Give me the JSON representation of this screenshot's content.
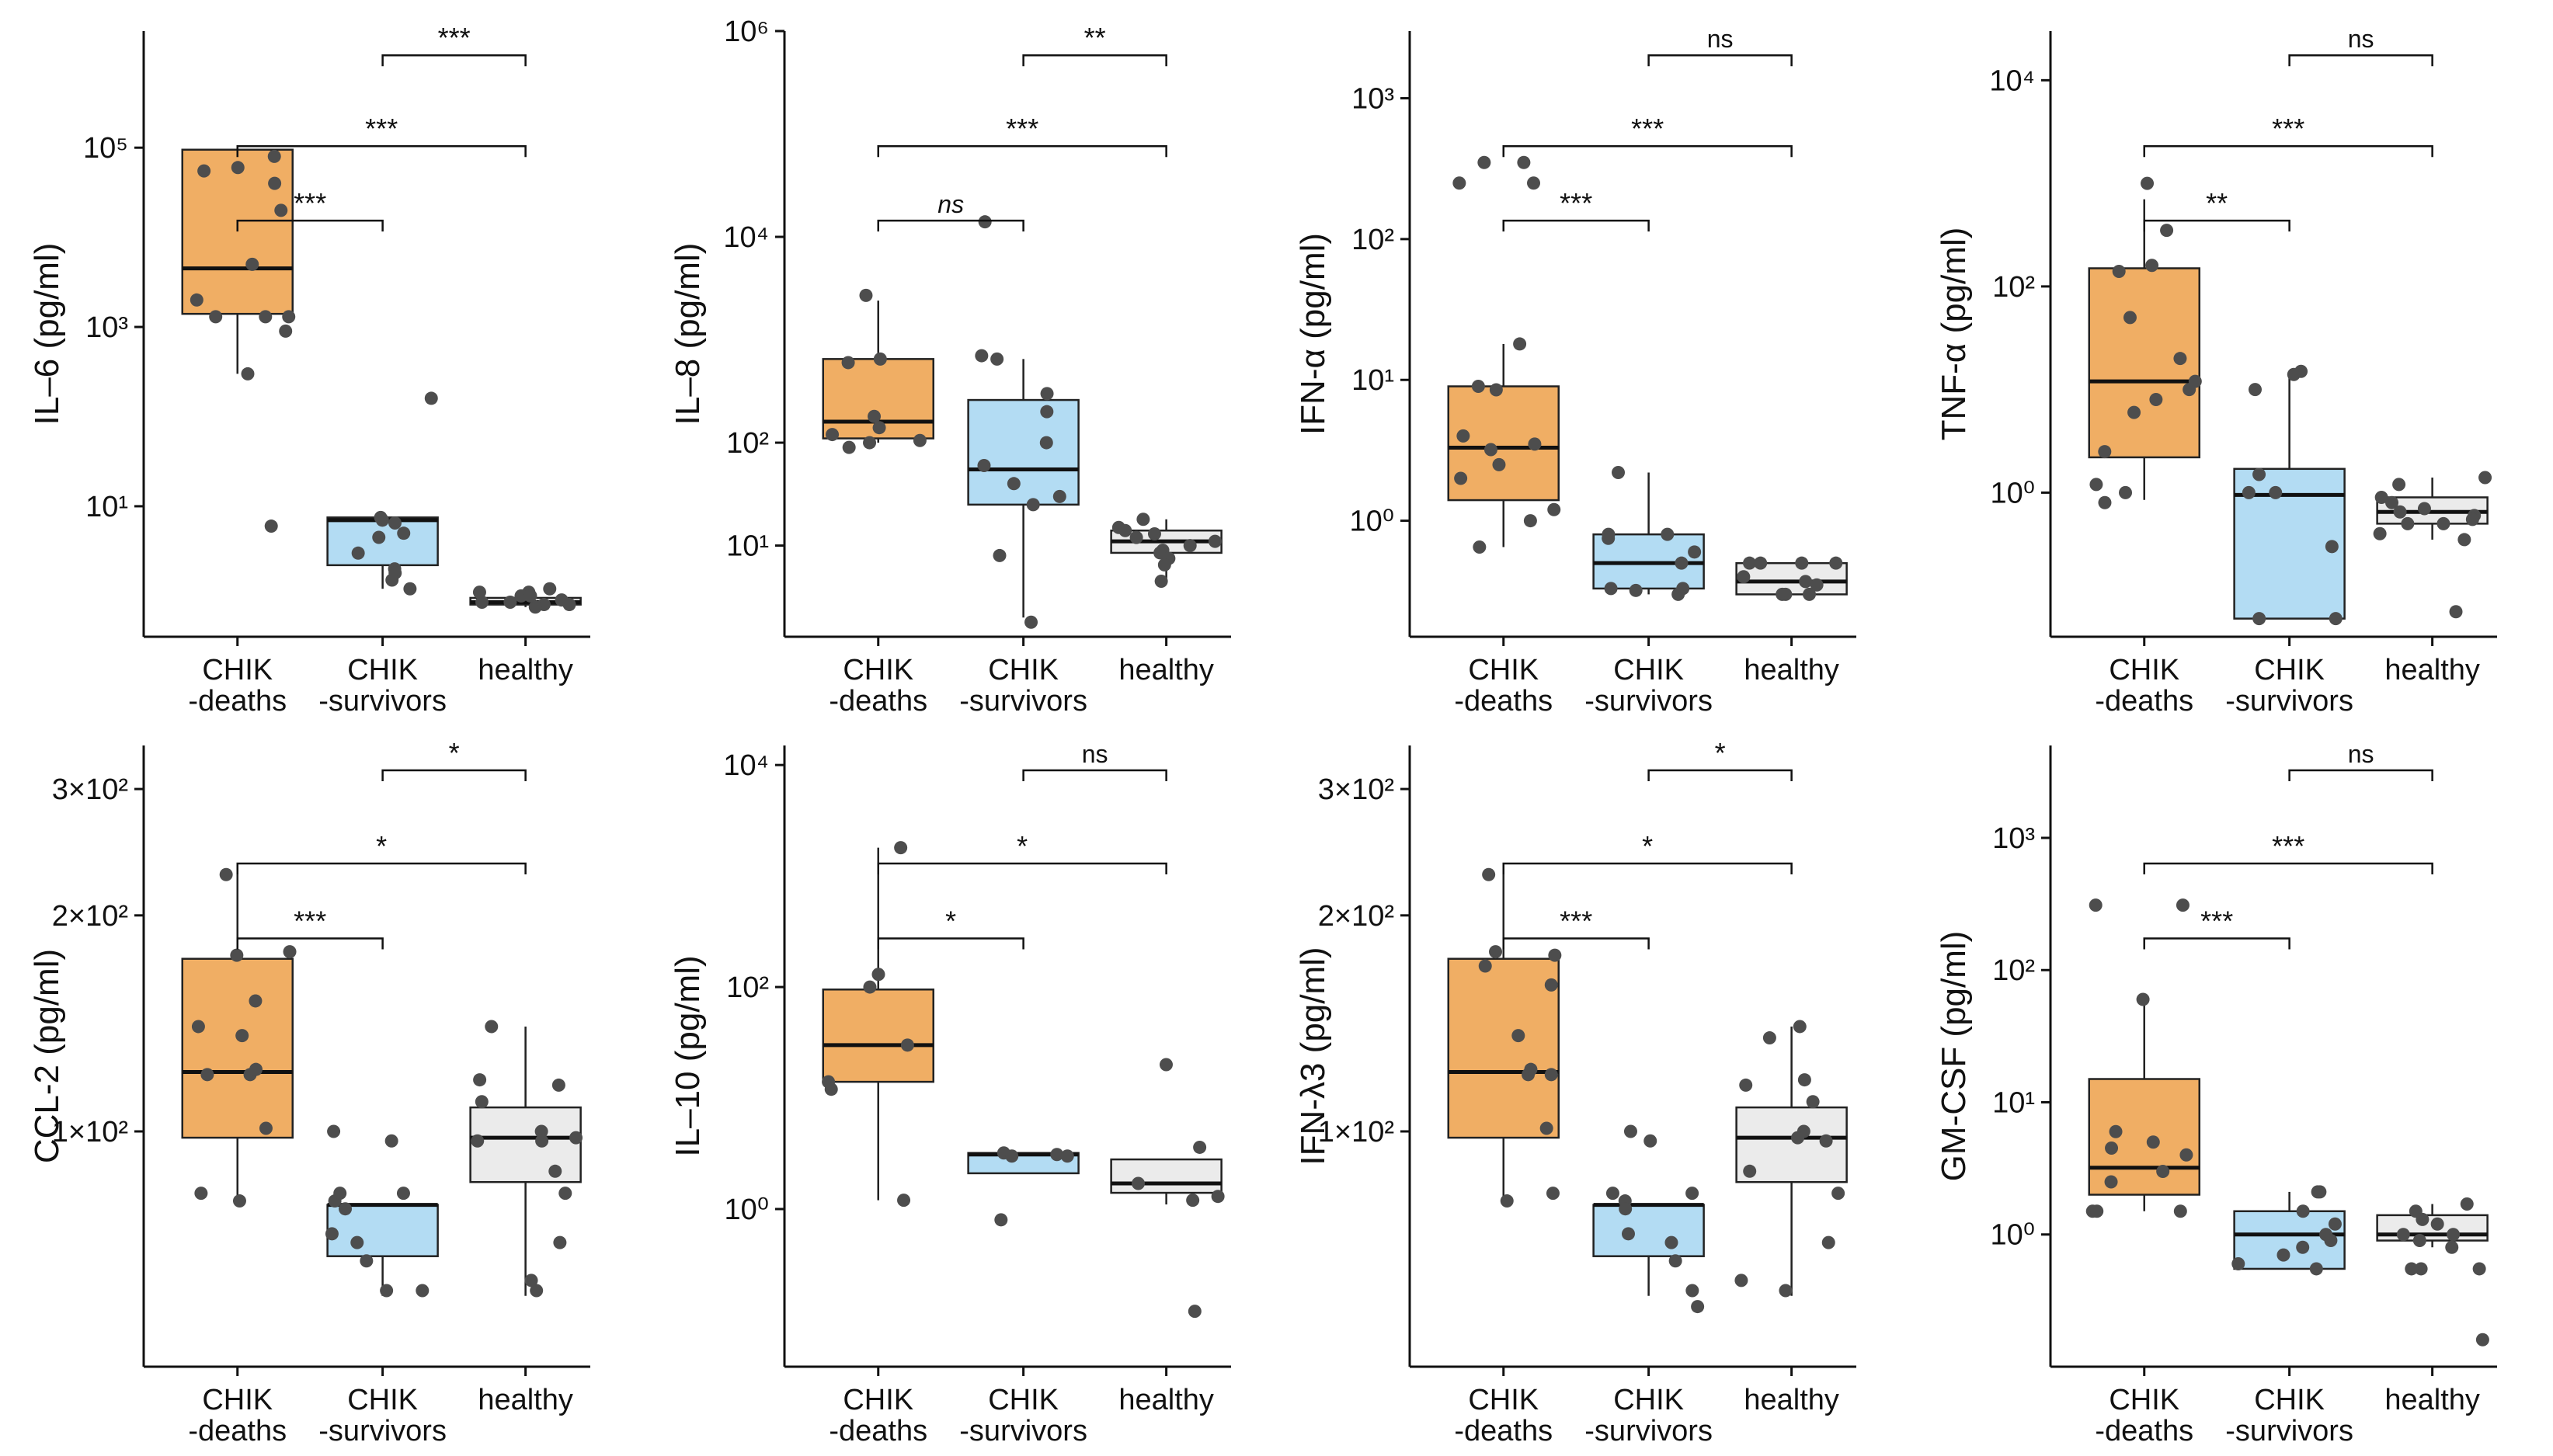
{
  "chart_data": [
    {
      "type": "box",
      "ylabel": "IL–6 (pg/ml)",
      "yscale": "log10",
      "ylim": [
        0.35,
        2000000
      ],
      "ticks": [
        {
          "value": 10,
          "label": "10¹"
        },
        {
          "value": 1000,
          "label": "10³"
        },
        {
          "value": 100000,
          "label": "10⁵"
        }
      ],
      "categories": [
        "CHIK\n-deaths",
        "CHIK\n-survivors",
        "healthy"
      ],
      "colors": [
        "#F0AE64",
        "#B3DCF3",
        "#EBEBEB"
      ],
      "boxes": [
        {
          "min": 300,
          "q1": 1400,
          "median": 4500,
          "q3": 95000,
          "max": 95000
        },
        {
          "min": 1.2,
          "q1": 2.2,
          "median": 7,
          "q3": 7.5,
          "max": 7.5
        },
        {
          "min": 0.75,
          "q1": 0.8,
          "median": 0.85,
          "q3": 0.95,
          "max": 1.2
        }
      ],
      "points": [
        [
          55000,
          60000,
          80000,
          40000,
          20000,
          2000,
          5000,
          1300,
          1300,
          900,
          300,
          6,
          1300
        ],
        [
          160,
          7,
          7.5,
          6.5,
          5,
          4.5,
          3,
          2,
          1.8,
          1.5,
          1.2
        ],
        [
          1.2,
          1.1,
          1.0,
          0.9,
          0.85,
          0.8,
          0.8,
          0.75,
          0.85,
          1.0,
          1.1
        ]
      ],
      "comparisons": [
        {
          "from": 0,
          "to": 1,
          "label": "***"
        },
        {
          "from": 0,
          "to": 2,
          "label": "***"
        },
        {
          "from": 1,
          "to": 2,
          "label": "***"
        }
      ]
    },
    {
      "type": "box",
      "ylabel": "IL–8 (pg/ml)",
      "yscale": "log10",
      "ylim": [
        1.3,
        1000000
      ],
      "ticks": [
        {
          "value": 10,
          "label": "10¹"
        },
        {
          "value": 100,
          "label": "10²"
        },
        {
          "value": 10000,
          "label": "10⁴"
        },
        {
          "value": 1000000,
          "label": "10⁶"
        }
      ],
      "categories": [
        "CHIK\n-deaths",
        "CHIK\n-survivors",
        "healthy"
      ],
      "colors": [
        "#F0AE64",
        "#B3DCF3",
        "#EBEBEB"
      ],
      "boxes": [
        {
          "min": 100,
          "q1": 110,
          "median": 160,
          "q3": 650,
          "max": 2400
        },
        {
          "min": 2,
          "q1": 25,
          "median": 55,
          "q3": 260,
          "max": 650
        },
        {
          "min": 4.5,
          "q1": 8.5,
          "median": 11,
          "q3": 14,
          "max": 18
        }
      ],
      "points": [
        [
          2700,
          650,
          600,
          180,
          120,
          105,
          100,
          90,
          140
        ],
        [
          14000,
          700,
          650,
          300,
          200,
          100,
          60,
          40,
          30,
          25,
          8,
          1.8
        ],
        [
          18,
          15,
          14,
          13,
          12,
          11,
          10,
          9,
          8.5,
          7.5,
          6.5,
          4.5
        ]
      ],
      "comparisons": [
        {
          "from": 0,
          "to": 1,
          "label": "ns"
        },
        {
          "from": 0,
          "to": 2,
          "label": "***"
        },
        {
          "from": 1,
          "to": 2,
          "label": "**"
        }
      ]
    },
    {
      "type": "box",
      "ylabel": "IFN-α (pg/ml)",
      "yscale": "log10",
      "ylim": [
        0.15,
        3000
      ],
      "ticks": [
        {
          "value": 1,
          "label": "10⁰"
        },
        {
          "value": 10,
          "label": "10¹"
        },
        {
          "value": 100,
          "label": "10²"
        },
        {
          "value": 1000,
          "label": "10³"
        }
      ],
      "categories": [
        "CHIK\n-deaths",
        "CHIK\n-survivors",
        "healthy"
      ],
      "colors": [
        "#F0AE64",
        "#B3DCF3",
        "#EBEBEB"
      ],
      "boxes": [
        {
          "min": 0.65,
          "q1": 1.4,
          "median": 3.3,
          "q3": 9,
          "max": 18
        },
        {
          "min": 0.3,
          "q1": 0.33,
          "median": 0.5,
          "q3": 0.8,
          "max": 2.2
        },
        {
          "min": 0.3,
          "q1": 0.3,
          "median": 0.37,
          "q3": 0.5,
          "max": 0.5
        }
      ],
      "points": [
        [
          350,
          350,
          250,
          250,
          18,
          9,
          8.5,
          4,
          3.5,
          3.2,
          2.5,
          2,
          1.2,
          1,
          0.65
        ],
        [
          2.2,
          0.8,
          0.8,
          0.75,
          0.6,
          0.5,
          0.33,
          0.33,
          0.32,
          0.3
        ],
        [
          0.5,
          0.5,
          0.5,
          0.5,
          0.4,
          0.37,
          0.35,
          0.3,
          0.3,
          0.3
        ]
      ],
      "comparisons": [
        {
          "from": 0,
          "to": 1,
          "label": "***"
        },
        {
          "from": 0,
          "to": 2,
          "label": "***"
        },
        {
          "from": 1,
          "to": 2,
          "label": "ns"
        }
      ]
    },
    {
      "type": "box",
      "ylabel": "TNF-α (pg/ml)",
      "yscale": "log10",
      "ylim": [
        0.04,
        30000
      ],
      "ticks": [
        {
          "value": 1,
          "label": "10⁰"
        },
        {
          "value": 100,
          "label": "10²"
        },
        {
          "value": 10000,
          "label": "10⁴"
        }
      ],
      "categories": [
        "CHIK\n-deaths",
        "CHIK\n-survivors",
        "healthy"
      ],
      "colors": [
        "#F0AE64",
        "#B3DCF3",
        "#EBEBEB"
      ],
      "boxes": [
        {
          "min": 0.85,
          "q1": 2.2,
          "median": 12,
          "q3": 150,
          "max": 700
        },
        {
          "min": 0.06,
          "q1": 0.06,
          "median": 0.95,
          "q3": 1.7,
          "max": 15
        },
        {
          "min": 0.35,
          "q1": 0.5,
          "median": 0.65,
          "q3": 0.9,
          "max": 1.4
        }
      ],
      "points": [
        [
          1000,
          350,
          160,
          140,
          50,
          20,
          12,
          10,
          8,
          6,
          2.5,
          1.2,
          1,
          0.8
        ],
        [
          15,
          14,
          10,
          1.5,
          1,
          1,
          0.3,
          0.06,
          0.06
        ],
        [
          1.4,
          1.2,
          0.9,
          0.8,
          0.7,
          0.65,
          0.6,
          0.55,
          0.5,
          0.5,
          0.4,
          0.35,
          0.07
        ]
      ],
      "comparisons": [
        {
          "from": 0,
          "to": 1,
          "label": "**"
        },
        {
          "from": 0,
          "to": 2,
          "label": "***"
        },
        {
          "from": 1,
          "to": 2,
          "label": "ns"
        }
      ]
    },
    {
      "type": "box",
      "ylabel": "CCL-2 (pg/ml)",
      "yscale": "log10",
      "ylim": [
        47,
        345
      ],
      "ticks": [
        {
          "value": 100,
          "label": "1×10²"
        },
        {
          "value": 200,
          "label": "2×10²"
        },
        {
          "value": 300,
          "label": "3×10²"
        }
      ],
      "categories": [
        "CHIK\n-deaths",
        "CHIK\n-survivors",
        "healthy"
      ],
      "colors": [
        "#F0AE64",
        "#B3DCF3",
        "#EBEBEB"
      ],
      "boxes": [
        {
          "min": 80,
          "q1": 98,
          "median": 121,
          "q3": 174,
          "max": 233
        },
        {
          "min": 59,
          "q1": 67,
          "median": 79,
          "q3": 79,
          "max": 79
        },
        {
          "min": 59,
          "q1": 85,
          "median": 98,
          "q3": 108,
          "max": 140
        }
      ],
      "points": [
        [
          228,
          152,
          140,
          136,
          120,
          101,
          82,
          80,
          176,
          178,
          120,
          122
        ],
        [
          97,
          100,
          82,
          80,
          78,
          72,
          70,
          66,
          60,
          60,
          82
        ],
        [
          140,
          118,
          116,
          110,
          100,
          98,
          97,
          88,
          82,
          70,
          62,
          60,
          97
        ]
      ],
      "comparisons": [
        {
          "from": 0,
          "to": 1,
          "label": "***"
        },
        {
          "from": 0,
          "to": 2,
          "label": "*"
        },
        {
          "from": 1,
          "to": 2,
          "label": "*"
        }
      ]
    },
    {
      "type": "box",
      "ylabel": "IL–10 (pg/ml)",
      "yscale": "log10",
      "ylim": [
        0.038,
        15000
      ],
      "ticks": [
        {
          "value": 1,
          "label": "10⁰"
        },
        {
          "value": 100,
          "label": "10²"
        },
        {
          "value": 10000,
          "label": "10⁴"
        }
      ],
      "categories": [
        "CHIK\n-deaths",
        "CHIK\n-survivors",
        "healthy"
      ],
      "colors": [
        "#F0AE64",
        "#B3DCF3",
        "#EBEBEB"
      ],
      "boxes": [
        {
          "min": 1.2,
          "q1": 14,
          "median": 30,
          "q3": 95,
          "max": 1800
        },
        {
          "min": 2.1,
          "q1": 2.1,
          "median": 3.1,
          "q3": 3.2,
          "max": 3.2
        },
        {
          "min": 1.1,
          "q1": 1.4,
          "median": 1.7,
          "q3": 2.8,
          "max": 2.8
        }
      ],
      "points": [
        [
          1800,
          130,
          100,
          30,
          14,
          12,
          1.2
        ],
        [
          3.2,
          3.1,
          3.0,
          3.0,
          0.8
        ],
        [
          20,
          3.6,
          1.7,
          1.3,
          1.2,
          0.12
        ]
      ],
      "comparisons": [
        {
          "from": 0,
          "to": 1,
          "label": "*"
        },
        {
          "from": 0,
          "to": 2,
          "label": "*"
        },
        {
          "from": 1,
          "to": 2,
          "label": "ns"
        }
      ]
    },
    {
      "type": "box",
      "ylabel": "IFN-λ3 (pg/ml)",
      "yscale": "log10",
      "ylim": [
        47,
        345
      ],
      "ticks": [
        {
          "value": 100,
          "label": "1×10²"
        },
        {
          "value": 200,
          "label": "2×10²"
        },
        {
          "value": 300,
          "label": "3×10²"
        }
      ],
      "categories": [
        "CHIK\n-deaths",
        "CHIK\n-survivors",
        "healthy"
      ],
      "colors": [
        "#F0AE64",
        "#B3DCF3",
        "#EBEBEB"
      ],
      "boxes": [
        {
          "min": 80,
          "q1": 98,
          "median": 121,
          "q3": 174,
          "max": 233
        },
        {
          "min": 59,
          "q1": 67,
          "median": 79,
          "q3": 79,
          "max": 79
        },
        {
          "min": 59,
          "q1": 85,
          "median": 98,
          "q3": 108,
          "max": 140
        }
      ],
      "points": [
        [
          228,
          170,
          160,
          136,
          120,
          101,
          82,
          80,
          176,
          178,
          120,
          122
        ],
        [
          97,
          100,
          82,
          80,
          78,
          72,
          70,
          66,
          60,
          57,
          82
        ],
        [
          140,
          118,
          116,
          110,
          100,
          98,
          97,
          88,
          82,
          70,
          62,
          60,
          135
        ]
      ],
      "comparisons": [
        {
          "from": 0,
          "to": 1,
          "label": "***"
        },
        {
          "from": 0,
          "to": 2,
          "label": "*"
        },
        {
          "from": 1,
          "to": 2,
          "label": "*"
        }
      ]
    },
    {
      "type": "box",
      "ylabel": "GM-CSF (pg/ml)",
      "yscale": "log10",
      "ylim": [
        0.1,
        5000
      ],
      "ticks": [
        {
          "value": 1,
          "label": "10⁰"
        },
        {
          "value": 10,
          "label": "10¹"
        },
        {
          "value": 100,
          "label": "10²"
        },
        {
          "value": 1000,
          "label": "10³"
        }
      ],
      "categories": [
        "CHIK\n-deaths",
        "CHIK\n-survivors",
        "healthy"
      ],
      "colors": [
        "#F0AE64",
        "#B3DCF3",
        "#EBEBEB"
      ],
      "boxes": [
        {
          "min": 1.5,
          "q1": 2,
          "median": 3.2,
          "q3": 15,
          "max": 60
        },
        {
          "min": 0.55,
          "q1": 0.55,
          "median": 1.0,
          "q3": 1.5,
          "max": 2.1
        },
        {
          "min": 0.8,
          "q1": 0.9,
          "median": 1.0,
          "q3": 1.4,
          "max": 1.7
        }
      ],
      "points": [
        [
          310,
          310,
          60,
          6,
          5,
          4.5,
          4,
          3,
          2.5,
          1.5,
          1.5,
          1.5
        ],
        [
          2.1,
          2.1,
          1.5,
          1.2,
          1.0,
          0.9,
          0.8,
          0.7,
          0.6,
          0.55
        ],
        [
          1.7,
          1.5,
          1.3,
          1.2,
          1.0,
          1.0,
          0.9,
          0.8,
          0.55,
          0.55,
          0.55,
          0.16
        ]
      ],
      "comparisons": [
        {
          "from": 0,
          "to": 1,
          "label": "***"
        },
        {
          "from": 0,
          "to": 2,
          "label": "***"
        },
        {
          "from": 1,
          "to": 2,
          "label": "ns"
        }
      ]
    }
  ]
}
